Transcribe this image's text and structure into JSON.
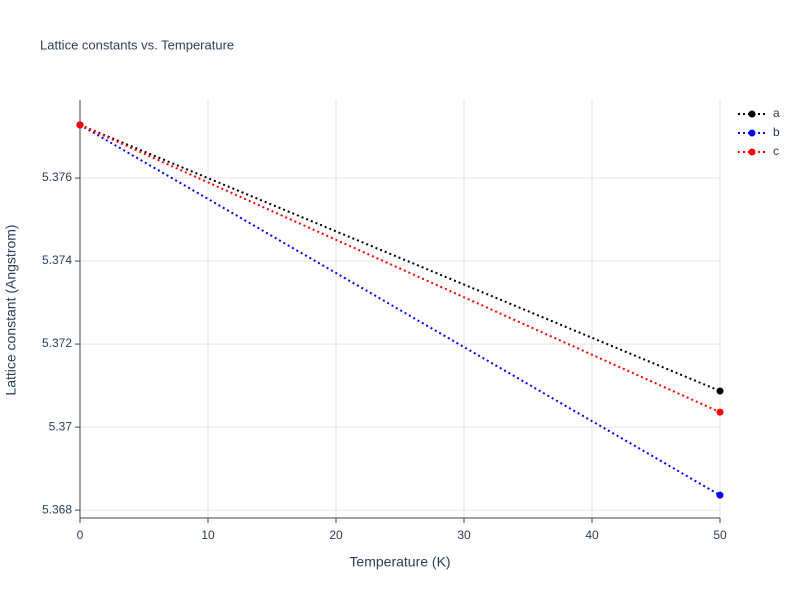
{
  "chart_data": {
    "type": "line",
    "title": "Lattice constants vs. Temperature",
    "x_label": "Temperature (K)",
    "y_label": "Lattice constant (Angstrom)",
    "x": [
      0,
      50
    ],
    "series": [
      {
        "name": "a",
        "color": "#000000",
        "values": [
          5.37728,
          5.37087
        ]
      },
      {
        "name": "b",
        "color": "#0000ff",
        "values": [
          5.37728,
          5.36836
        ]
      },
      {
        "name": "c",
        "color": "#ff0000",
        "values": [
          5.37728,
          5.37036
        ]
      }
    ],
    "xlim": [
      0,
      50
    ],
    "xticks": [
      0,
      10,
      20,
      30,
      40,
      50
    ],
    "ylim": [
      5.36781,
      5.37788
    ],
    "yticks": [
      5.368,
      5.37,
      5.372,
      5.374,
      5.376
    ],
    "grid": true,
    "legend": "top-right"
  }
}
